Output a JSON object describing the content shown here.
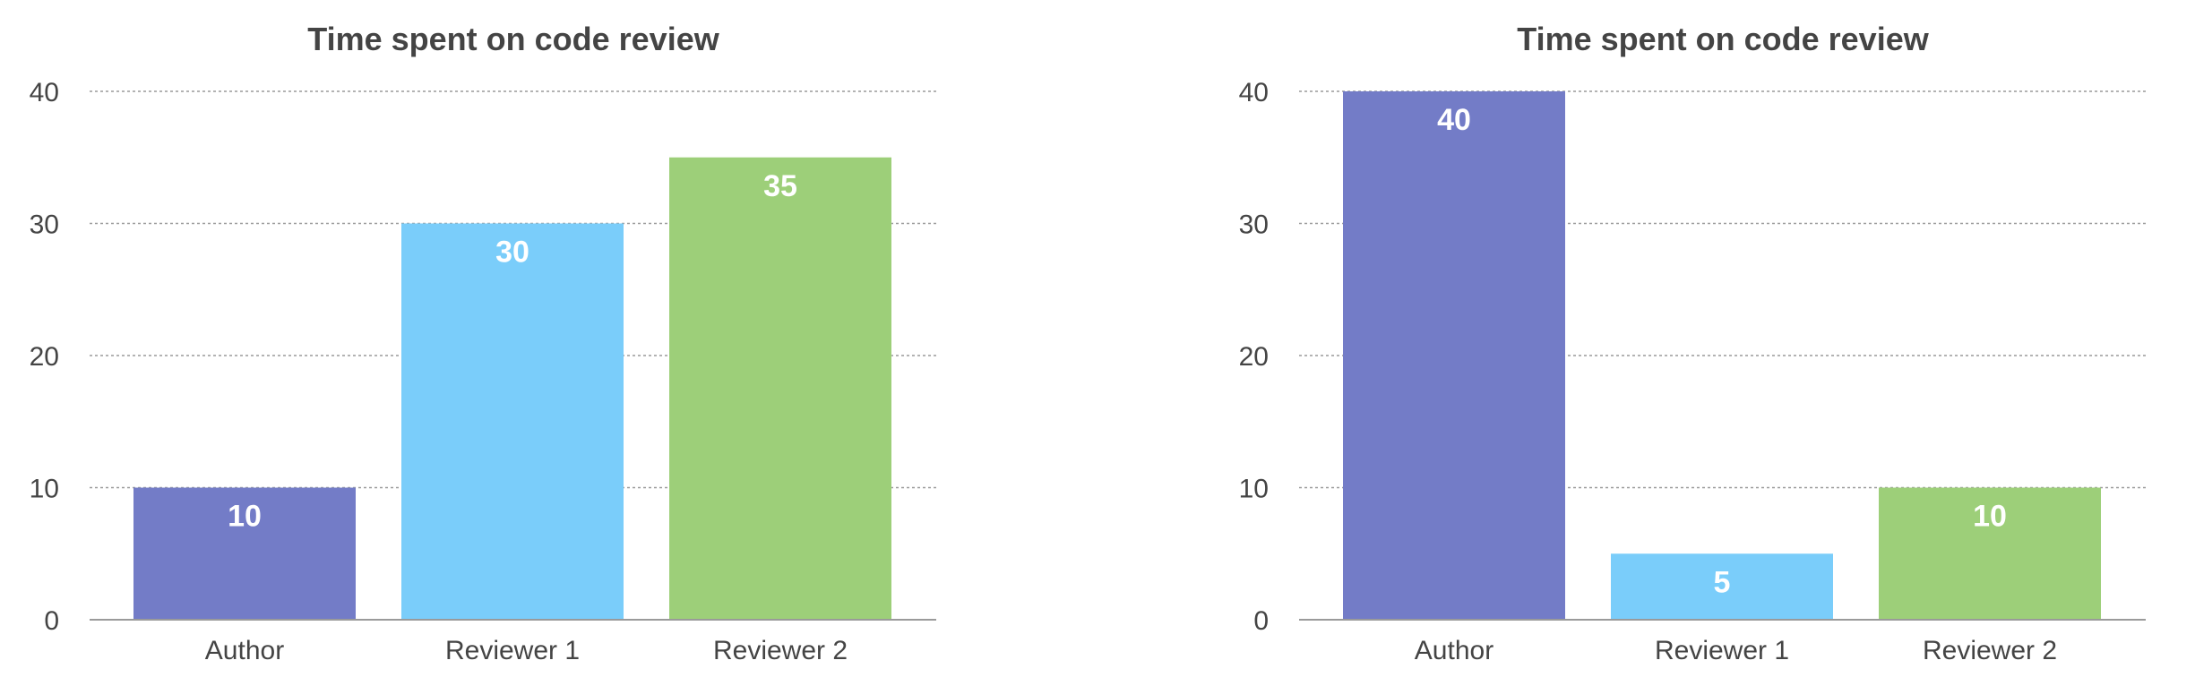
{
  "chart_data": [
    {
      "type": "bar",
      "title": "Time spent on code review",
      "categories": [
        "Author",
        "Reviewer 1",
        "Reviewer 2"
      ],
      "values": [
        10,
        30,
        35
      ],
      "colors": [
        "#737cc7",
        "#7acdfa",
        "#9dcf79"
      ],
      "ylim": [
        0,
        40
      ],
      "yticks": [
        0,
        10,
        20,
        30,
        40
      ],
      "grid": true,
      "data_labels": true,
      "legend": "none"
    },
    {
      "type": "bar",
      "title": "Time spent on code review",
      "categories": [
        "Author",
        "Reviewer 1",
        "Reviewer 2"
      ],
      "values": [
        40,
        5,
        10
      ],
      "colors": [
        "#737cc7",
        "#7acdfa",
        "#9dcf79"
      ],
      "ylim": [
        0,
        40
      ],
      "yticks": [
        0,
        10,
        20,
        30,
        40
      ],
      "grid": true,
      "data_labels": true,
      "legend": "none"
    }
  ]
}
